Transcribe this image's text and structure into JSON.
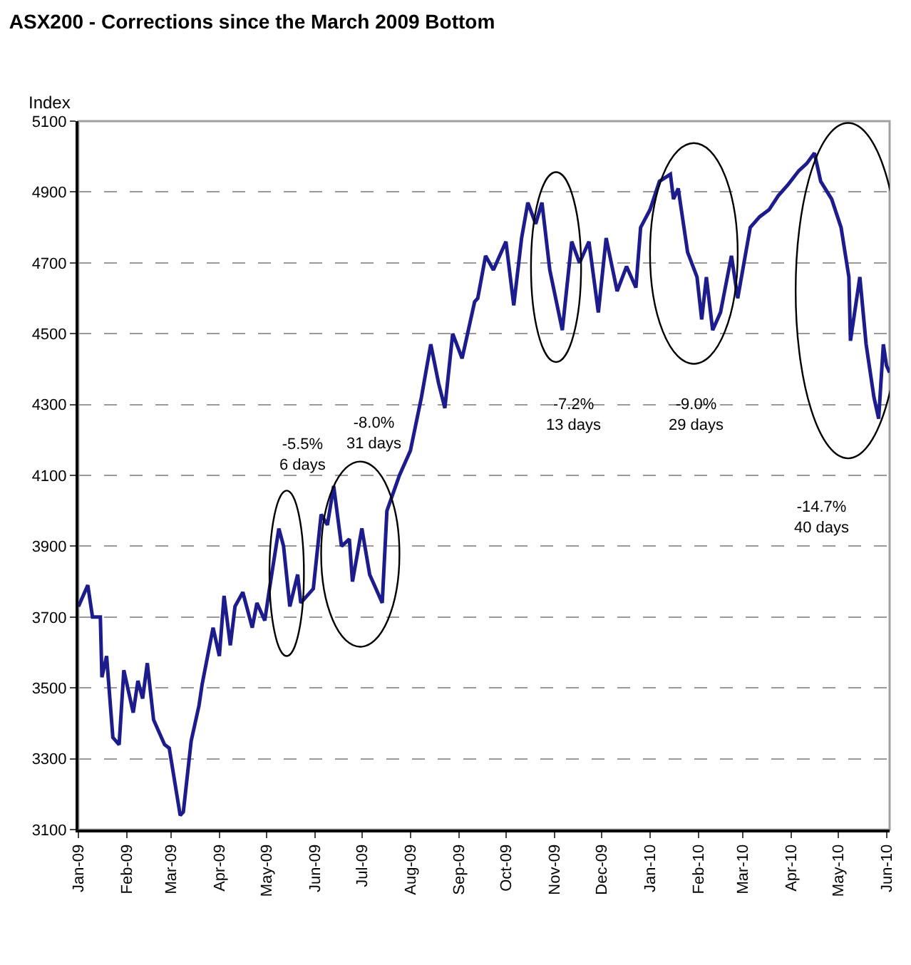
{
  "chart_data": {
    "type": "line",
    "title": "ASX200 - Corrections since the March 2009 Bottom",
    "ylabel": "Index",
    "x": [
      "2009-01-01",
      "2009-01-07",
      "2009-01-10",
      "2009-01-15",
      "2009-01-16",
      "2009-01-19",
      "2009-01-23",
      "2009-01-27",
      "2009-01-30",
      "2009-02-05",
      "2009-02-08",
      "2009-02-11",
      "2009-02-14",
      "2009-02-18",
      "2009-02-25",
      "2009-02-28",
      "2009-03-07",
      "2009-03-09",
      "2009-03-14",
      "2009-03-19",
      "2009-03-21",
      "2009-03-28",
      "2009-04-01",
      "2009-04-04",
      "2009-04-08",
      "2009-04-11",
      "2009-04-16",
      "2009-04-22",
      "2009-04-25",
      "2009-04-30",
      "2009-05-03",
      "2009-05-09",
      "2009-05-12",
      "2009-05-16",
      "2009-05-21",
      "2009-05-23",
      "2009-05-31",
      "2009-06-05",
      "2009-06-09",
      "2009-06-13",
      "2009-06-18",
      "2009-06-23",
      "2009-06-25",
      "2009-07-01",
      "2009-07-06",
      "2009-07-11",
      "2009-07-14",
      "2009-07-17",
      "2009-07-25",
      "2009-08-01",
      "2009-08-08",
      "2009-08-14",
      "2009-08-19",
      "2009-08-23",
      "2009-08-28",
      "2009-09-03",
      "2009-09-11",
      "2009-09-13",
      "2009-09-18",
      "2009-09-23",
      "2009-10-01",
      "2009-10-06",
      "2009-10-11",
      "2009-10-15",
      "2009-10-20",
      "2009-10-24",
      "2009-10-29",
      "2009-11-06",
      "2009-11-12",
      "2009-11-17",
      "2009-11-23",
      "2009-11-29",
      "2009-12-04",
      "2009-12-11",
      "2009-12-17",
      "2009-12-23",
      "2009-12-26",
      "2010-01-01",
      "2010-01-07",
      "2010-01-14",
      "2010-01-16",
      "2010-01-19",
      "2010-01-25",
      "2010-01-31",
      "2010-02-03",
      "2010-02-06",
      "2010-02-10",
      "2010-02-15",
      "2010-02-22",
      "2010-02-26",
      "2010-03-06",
      "2010-03-12",
      "2010-03-18",
      "2010-03-24",
      "2010-03-30",
      "2010-04-06",
      "2010-04-11",
      "2010-04-16",
      "2010-04-20",
      "2010-04-27",
      "2010-05-03",
      "2010-05-08",
      "2010-05-09",
      "2010-05-15",
      "2010-05-19",
      "2010-05-24",
      "2010-05-27",
      "2010-05-30",
      "2010-06-01",
      "2010-06-03"
    ],
    "series": [
      {
        "color": "#1c1c8c",
        "values": [
          3730,
          3790,
          3700,
          3700,
          3530,
          3590,
          3360,
          3340,
          3550,
          3430,
          3520,
          3470,
          3570,
          3410,
          3340,
          3330,
          3140,
          3150,
          3350,
          3450,
          3510,
          3670,
          3590,
          3760,
          3620,
          3730,
          3770,
          3670,
          3740,
          3690,
          3780,
          3950,
          3900,
          3730,
          3820,
          3740,
          3780,
          3990,
          3960,
          4070,
          3900,
          3920,
          3800,
          3950,
          3820,
          3770,
          3740,
          4000,
          4100,
          4170,
          4320,
          4470,
          4360,
          4290,
          4500,
          4430,
          4590,
          4600,
          4720,
          4680,
          4760,
          4580,
          4770,
          4870,
          4810,
          4870,
          4680,
          4510,
          4760,
          4700,
          4760,
          4560,
          4770,
          4620,
          4690,
          4630,
          4800,
          4850,
          4930,
          4950,
          4880,
          4910,
          4730,
          4660,
          4540,
          4660,
          4510,
          4560,
          4720,
          4600,
          4800,
          4830,
          4850,
          4890,
          4920,
          4960,
          4980,
          5010,
          4930,
          4880,
          4800,
          4660,
          4480,
          4660,
          4470,
          4320,
          4260,
          4470,
          4410,
          4390
        ]
      }
    ],
    "xlim": [
      "2009-01-01",
      "2010-06-03"
    ],
    "xticks": [
      {
        "value": "2009-01-01",
        "label": "Jan-09"
      },
      {
        "value": "2009-02-01",
        "label": "Feb-09"
      },
      {
        "value": "2009-03-01",
        "label": "Mar-09"
      },
      {
        "value": "2009-04-01",
        "label": "Apr-09"
      },
      {
        "value": "2009-05-01",
        "label": "May-09"
      },
      {
        "value": "2009-06-01",
        "label": "Jun-09"
      },
      {
        "value": "2009-07-01",
        "label": "Jul-09"
      },
      {
        "value": "2009-08-01",
        "label": "Aug-09"
      },
      {
        "value": "2009-09-01",
        "label": "Sep-09"
      },
      {
        "value": "2009-10-01",
        "label": "Oct-09"
      },
      {
        "value": "2009-11-01",
        "label": "Nov-09"
      },
      {
        "value": "2009-12-01",
        "label": "Dec-09"
      },
      {
        "value": "2010-01-01",
        "label": "Jan-10"
      },
      {
        "value": "2010-02-01",
        "label": "Feb-10"
      },
      {
        "value": "2010-03-01",
        "label": "Mar-10"
      },
      {
        "value": "2010-04-01",
        "label": "Apr-10"
      },
      {
        "value": "2010-05-01",
        "label": "May-10"
      },
      {
        "value": "2010-06-01",
        "label": "Jun-10"
      }
    ],
    "ylim": [
      3100,
      5100
    ],
    "yticks": [
      3100,
      3300,
      3500,
      3700,
      3900,
      4100,
      4300,
      4500,
      4700,
      4900,
      5100
    ],
    "grid": "y",
    "line_style": "solid",
    "marker": "none",
    "annotations": [
      "-5.5%\n6 days",
      "-8.0%\n31 days",
      "-7.2%\n13 days",
      "-9.0%\n29 days",
      "-14.7%\n40 days"
    ]
  }
}
